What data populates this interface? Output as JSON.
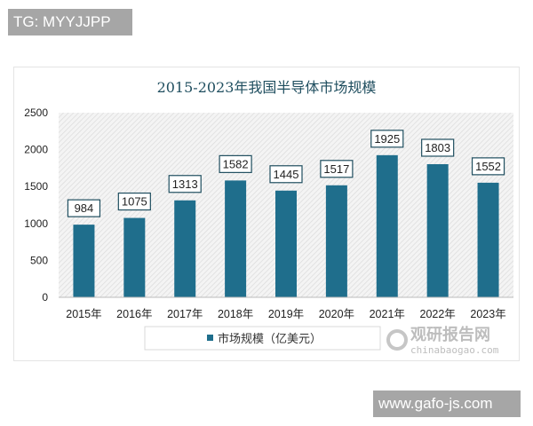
{
  "badges": {
    "top_left": "TG: MYYJJPP",
    "bottom_right": "www.gafo-js.com"
  },
  "watermark": {
    "name": "观研报告网",
    "domain": "chinabaogao.com"
  },
  "chart_data": {
    "type": "bar",
    "title": "2015-2023年我国半导体市场规模",
    "categories": [
      "2015年",
      "2016年",
      "2017年",
      "2018年",
      "2019年",
      "2020年",
      "2021年",
      "2022年",
      "2023年"
    ],
    "series": [
      {
        "name": "市场规模（亿美元）",
        "values": [
          984,
          1075,
          1313,
          1582,
          1445,
          1517,
          1925,
          1803,
          1552
        ],
        "color": "#1f6e8c"
      }
    ],
    "yticks": [
      "0",
      "500",
      "1000",
      "1500",
      "2000",
      "2500"
    ],
    "ylim": [
      0,
      2500
    ],
    "xlabel": "",
    "ylabel": "",
    "legend": "bottom",
    "title_color": "#1f4e5f"
  }
}
